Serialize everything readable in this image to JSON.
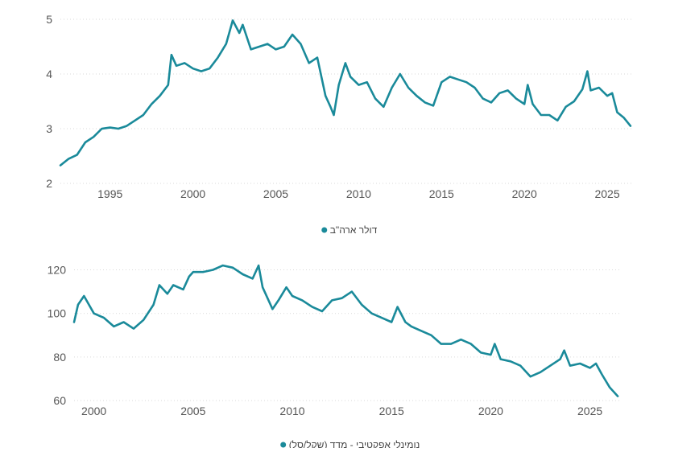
{
  "colors": {
    "series": "#1a8a9a",
    "grid": "#d9d9d9",
    "tick_text": "#555555",
    "background": "#ffffff"
  },
  "chart_data": [
    {
      "type": "line",
      "title": "",
      "xlabel": "",
      "ylabel": "",
      "xlim": [
        1992.0,
        2026.6
      ],
      "ylim": [
        2,
        5
      ],
      "x_ticks": [
        1995,
        2000,
        2005,
        2010,
        2015,
        2020,
        2025
      ],
      "y_ticks": [
        2,
        3,
        4,
        5
      ],
      "grid": "horizontal dotted",
      "legend_position": "bottom",
      "series": [
        {
          "name": "דולר ארה\"ב",
          "points": [
            [
              1992.0,
              2.33
            ],
            [
              1992.5,
              2.45
            ],
            [
              1993.0,
              2.52
            ],
            [
              1993.5,
              2.75
            ],
            [
              1994.0,
              2.85
            ],
            [
              1994.5,
              3.0
            ],
            [
              1995.0,
              3.02
            ],
            [
              1995.5,
              3.0
            ],
            [
              1996.0,
              3.05
            ],
            [
              1996.5,
              3.15
            ],
            [
              1997.0,
              3.25
            ],
            [
              1997.5,
              3.45
            ],
            [
              1998.0,
              3.6
            ],
            [
              1998.5,
              3.8
            ],
            [
              1998.7,
              4.35
            ],
            [
              1999.0,
              4.15
            ],
            [
              1999.5,
              4.2
            ],
            [
              2000.0,
              4.1
            ],
            [
              2000.5,
              4.05
            ],
            [
              2001.0,
              4.1
            ],
            [
              2001.5,
              4.3
            ],
            [
              2002.0,
              4.55
            ],
            [
              2002.4,
              4.98
            ],
            [
              2002.8,
              4.75
            ],
            [
              2003.0,
              4.9
            ],
            [
              2003.5,
              4.45
            ],
            [
              2004.0,
              4.5
            ],
            [
              2004.5,
              4.55
            ],
            [
              2005.0,
              4.45
            ],
            [
              2005.5,
              4.5
            ],
            [
              2006.0,
              4.72
            ],
            [
              2006.5,
              4.55
            ],
            [
              2007.0,
              4.2
            ],
            [
              2007.5,
              4.3
            ],
            [
              2008.0,
              3.6
            ],
            [
              2008.3,
              3.4
            ],
            [
              2008.5,
              3.25
            ],
            [
              2008.8,
              3.8
            ],
            [
              2009.2,
              4.2
            ],
            [
              2009.5,
              3.95
            ],
            [
              2010.0,
              3.8
            ],
            [
              2010.5,
              3.85
            ],
            [
              2011.0,
              3.55
            ],
            [
              2011.5,
              3.4
            ],
            [
              2012.0,
              3.75
            ],
            [
              2012.5,
              4.0
            ],
            [
              2013.0,
              3.75
            ],
            [
              2013.5,
              3.6
            ],
            [
              2014.0,
              3.48
            ],
            [
              2014.5,
              3.42
            ],
            [
              2015.0,
              3.85
            ],
            [
              2015.5,
              3.95
            ],
            [
              2016.0,
              3.9
            ],
            [
              2016.5,
              3.85
            ],
            [
              2017.0,
              3.75
            ],
            [
              2017.5,
              3.55
            ],
            [
              2018.0,
              3.48
            ],
            [
              2018.5,
              3.65
            ],
            [
              2019.0,
              3.7
            ],
            [
              2019.5,
              3.55
            ],
            [
              2020.0,
              3.45
            ],
            [
              2020.2,
              3.8
            ],
            [
              2020.5,
              3.45
            ],
            [
              2021.0,
              3.25
            ],
            [
              2021.5,
              3.25
            ],
            [
              2022.0,
              3.15
            ],
            [
              2022.5,
              3.4
            ],
            [
              2023.0,
              3.5
            ],
            [
              2023.5,
              3.72
            ],
            [
              2023.8,
              4.05
            ],
            [
              2024.0,
              3.7
            ],
            [
              2024.5,
              3.75
            ],
            [
              2025.0,
              3.6
            ],
            [
              2025.3,
              3.65
            ],
            [
              2025.6,
              3.3
            ],
            [
              2026.0,
              3.2
            ],
            [
              2026.4,
              3.05
            ]
          ]
        }
      ]
    },
    {
      "type": "line",
      "title": "",
      "xlabel": "",
      "ylabel": "",
      "xlim": [
        1999.0,
        2026.6
      ],
      "ylim": [
        60,
        125
      ],
      "x_ticks": [
        2000,
        2005,
        2010,
        2015,
        2020,
        2025
      ],
      "y_ticks": [
        60,
        80,
        100,
        120
      ],
      "grid": "horizontal dotted",
      "legend_position": "bottom",
      "series": [
        {
          "name": "נומינלי אפקטיבי - מדד (שקל/סל)",
          "points": [
            [
              1999.0,
              96
            ],
            [
              1999.2,
              104
            ],
            [
              1999.5,
              108
            ],
            [
              2000.0,
              100
            ],
            [
              2000.5,
              98
            ],
            [
              2001.0,
              94
            ],
            [
              2001.5,
              96
            ],
            [
              2002.0,
              93
            ],
            [
              2002.5,
              97
            ],
            [
              2003.0,
              104
            ],
            [
              2003.3,
              113
            ],
            [
              2003.7,
              109
            ],
            [
              2004.0,
              113
            ],
            [
              2004.5,
              111
            ],
            [
              2004.8,
              117
            ],
            [
              2005.0,
              119
            ],
            [
              2005.5,
              119
            ],
            [
              2006.0,
              120
            ],
            [
              2006.5,
              122
            ],
            [
              2007.0,
              121
            ],
            [
              2007.5,
              118
            ],
            [
              2008.0,
              116
            ],
            [
              2008.3,
              122
            ],
            [
              2008.5,
              112
            ],
            [
              2009.0,
              102
            ],
            [
              2009.3,
              106
            ],
            [
              2009.7,
              112
            ],
            [
              2010.0,
              108
            ],
            [
              2010.5,
              106
            ],
            [
              2011.0,
              103
            ],
            [
              2011.5,
              101
            ],
            [
              2012.0,
              106
            ],
            [
              2012.5,
              107
            ],
            [
              2013.0,
              110
            ],
            [
              2013.5,
              104
            ],
            [
              2014.0,
              100
            ],
            [
              2014.5,
              98
            ],
            [
              2015.0,
              96
            ],
            [
              2015.3,
              103
            ],
            [
              2015.7,
              96
            ],
            [
              2016.0,
              94
            ],
            [
              2016.5,
              92
            ],
            [
              2017.0,
              90
            ],
            [
              2017.5,
              86
            ],
            [
              2018.0,
              86
            ],
            [
              2018.5,
              88
            ],
            [
              2019.0,
              86
            ],
            [
              2019.5,
              82
            ],
            [
              2020.0,
              81
            ],
            [
              2020.2,
              86
            ],
            [
              2020.5,
              79
            ],
            [
              2021.0,
              78
            ],
            [
              2021.5,
              76
            ],
            [
              2022.0,
              71
            ],
            [
              2022.5,
              73
            ],
            [
              2023.0,
              76
            ],
            [
              2023.5,
              79
            ],
            [
              2023.7,
              83
            ],
            [
              2024.0,
              76
            ],
            [
              2024.5,
              77
            ],
            [
              2025.0,
              75
            ],
            [
              2025.3,
              77
            ],
            [
              2025.6,
              72
            ],
            [
              2026.0,
              66
            ],
            [
              2026.4,
              62
            ]
          ]
        }
      ]
    }
  ]
}
